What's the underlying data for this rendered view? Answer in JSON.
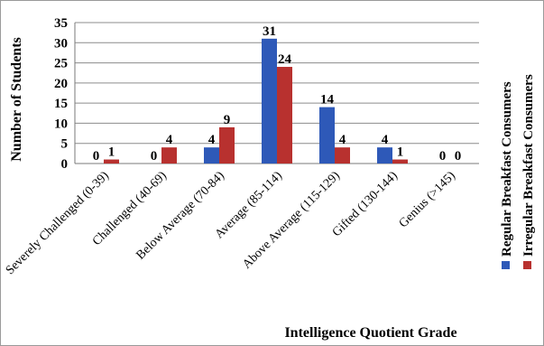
{
  "chart_data": {
    "type": "bar",
    "categories": [
      "Severely Challenged (0-39)",
      "Challenged (40-69)",
      "Below Average (70-84)",
      "Average (85-114)",
      "Above Average (115-129)",
      "Gifted (130-144)",
      "Genius (>145)"
    ],
    "series": [
      {
        "name": "Regular Breakfast Consumers",
        "values": [
          0,
          0,
          4,
          31,
          14,
          4,
          0
        ],
        "color": "#2e59b8"
      },
      {
        "name": "Irregular Breakfast Consumers",
        "values": [
          1,
          4,
          9,
          24,
          4,
          1,
          0
        ],
        "color": "#b8312f"
      }
    ],
    "title": "",
    "xlabel": "Intelligence Quotient Grade",
    "ylabel": "Number of Students",
    "ylim": [
      0,
      35
    ],
    "yticks": [
      "0",
      "5",
      "10",
      "15",
      "20",
      "25",
      "30",
      "35"
    ],
    "grid": true,
    "legend_position": "right"
  }
}
